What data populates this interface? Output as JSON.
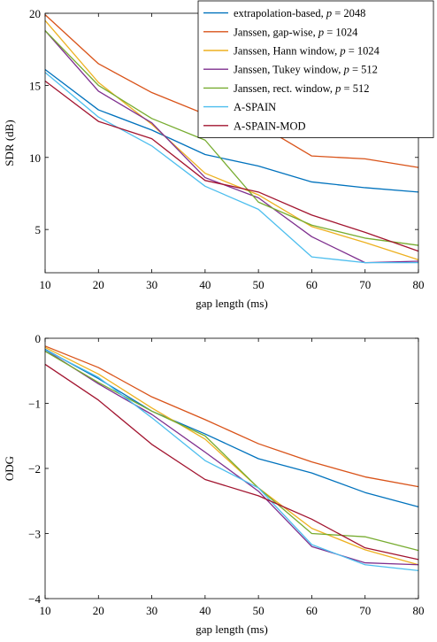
{
  "chart_data": [
    {
      "type": "line",
      "title": "",
      "xlabel": "gap length (ms)",
      "ylabel": "SDR (dB)",
      "x": [
        10,
        20,
        30,
        40,
        50,
        60,
        70,
        80
      ],
      "xlim": [
        10,
        80
      ],
      "ylim": [
        2,
        20
      ],
      "xticks": [
        10,
        20,
        30,
        40,
        50,
        60,
        70,
        80
      ],
      "yticks": [
        5,
        10,
        15,
        20
      ],
      "ytick_labels": [
        "5",
        "10",
        "15",
        "20"
      ],
      "grid": false,
      "legend_position": "top-right",
      "series": [
        {
          "name": "extrapolation-based, p = 2048",
          "color": "#0072bd",
          "values": [
            16.1,
            13.3,
            11.9,
            10.2,
            9.4,
            8.3,
            7.9,
            7.6
          ]
        },
        {
          "name": "Janssen, gap-wise, p = 1024",
          "color": "#d95319",
          "values": [
            19.9,
            16.5,
            14.5,
            13.0,
            12.3,
            10.1,
            9.9,
            9.3
          ]
        },
        {
          "name": "Janssen, Hann window, p = 1024",
          "color": "#edb120",
          "values": [
            19.5,
            15.2,
            12.3,
            8.9,
            7.4,
            5.2,
            4.1,
            2.9
          ]
        },
        {
          "name": "Janssen, Tukey window, p = 512",
          "color": "#7e2f8e",
          "values": [
            18.8,
            14.6,
            12.4,
            8.6,
            7.2,
            4.5,
            2.7,
            2.8
          ]
        },
        {
          "name": "Janssen, rect. window, p = 512",
          "color": "#77ac30",
          "values": [
            18.8,
            15.0,
            12.7,
            11.2,
            6.9,
            5.3,
            4.4,
            3.9
          ]
        },
        {
          "name": "A-SPAIN",
          "color": "#4dbeee",
          "values": [
            15.9,
            12.8,
            10.8,
            8.0,
            6.4,
            3.1,
            2.7,
            2.7
          ]
        },
        {
          "name": "A-SPAIN-MOD",
          "color": "#a2142f",
          "values": [
            15.3,
            12.5,
            11.3,
            8.4,
            7.6,
            6.0,
            4.8,
            3.5
          ]
        }
      ]
    },
    {
      "type": "line",
      "title": "",
      "xlabel": "gap length (ms)",
      "ylabel": "ODG",
      "x": [
        10,
        20,
        30,
        40,
        50,
        60,
        70,
        80
      ],
      "xlim": [
        10,
        80
      ],
      "ylim": [
        -4,
        0
      ],
      "xticks": [
        10,
        20,
        30,
        40,
        50,
        60,
        70,
        80
      ],
      "yticks": [
        -4,
        -3,
        -2,
        -1,
        0
      ],
      "ytick_labels": [
        "−4",
        "−3",
        "−2",
        "−1",
        "0"
      ],
      "grid": false,
      "series": [
        {
          "name": "extrapolation-based, p = 2048",
          "color": "#0072bd",
          "values": [
            -0.17,
            -0.62,
            -1.12,
            -1.47,
            -1.85,
            -2.07,
            -2.37,
            -2.59
          ]
        },
        {
          "name": "Janssen, gap-wise, p = 1024",
          "color": "#d95319",
          "values": [
            -0.12,
            -0.45,
            -0.9,
            -1.25,
            -1.62,
            -1.9,
            -2.13,
            -2.28
          ]
        },
        {
          "name": "Janssen, Hann window, p = 1024",
          "color": "#edb120",
          "values": [
            -0.14,
            -0.55,
            -1.07,
            -1.55,
            -2.3,
            -2.92,
            -3.25,
            -3.48
          ]
        },
        {
          "name": "Janssen, Tukey window, p = 512",
          "color": "#7e2f8e",
          "values": [
            -0.18,
            -0.7,
            -1.17,
            -1.75,
            -2.35,
            -3.2,
            -3.45,
            -3.48
          ]
        },
        {
          "name": "Janssen, rect. window, p = 512",
          "color": "#77ac30",
          "values": [
            -0.2,
            -0.68,
            -1.12,
            -1.5,
            -2.3,
            -3.0,
            -3.05,
            -3.26
          ]
        },
        {
          "name": "A-SPAIN",
          "color": "#4dbeee",
          "values": [
            -0.18,
            -0.6,
            -1.22,
            -1.88,
            -2.3,
            -3.17,
            -3.48,
            -3.57
          ]
        },
        {
          "name": "A-SPAIN-MOD",
          "color": "#a2142f",
          "values": [
            -0.4,
            -0.95,
            -1.63,
            -2.17,
            -2.42,
            -2.78,
            -3.22,
            -3.4
          ]
        }
      ]
    }
  ],
  "legend": {
    "items": [
      {
        "base": "extrapolation-based, ",
        "var": "p",
        "eq": " = 2048",
        "color": "#0072bd"
      },
      {
        "base": "Janssen, gap-wise, ",
        "var": "p",
        "eq": " = 1024",
        "color": "#d95319"
      },
      {
        "base": "Janssen, Hann window, ",
        "var": "p",
        "eq": " = 1024",
        "color": "#edb120"
      },
      {
        "base": "Janssen, Tukey window, ",
        "var": "p",
        "eq": " = 512",
        "color": "#7e2f8e"
      },
      {
        "base": "Janssen, rect. window, ",
        "var": "p",
        "eq": " = 512",
        "color": "#77ac30"
      },
      {
        "base": "A-SPAIN",
        "var": "",
        "eq": "",
        "color": "#4dbeee"
      },
      {
        "base": "A-SPAIN-MOD",
        "var": "",
        "eq": "",
        "color": "#a2142f"
      }
    ]
  }
}
